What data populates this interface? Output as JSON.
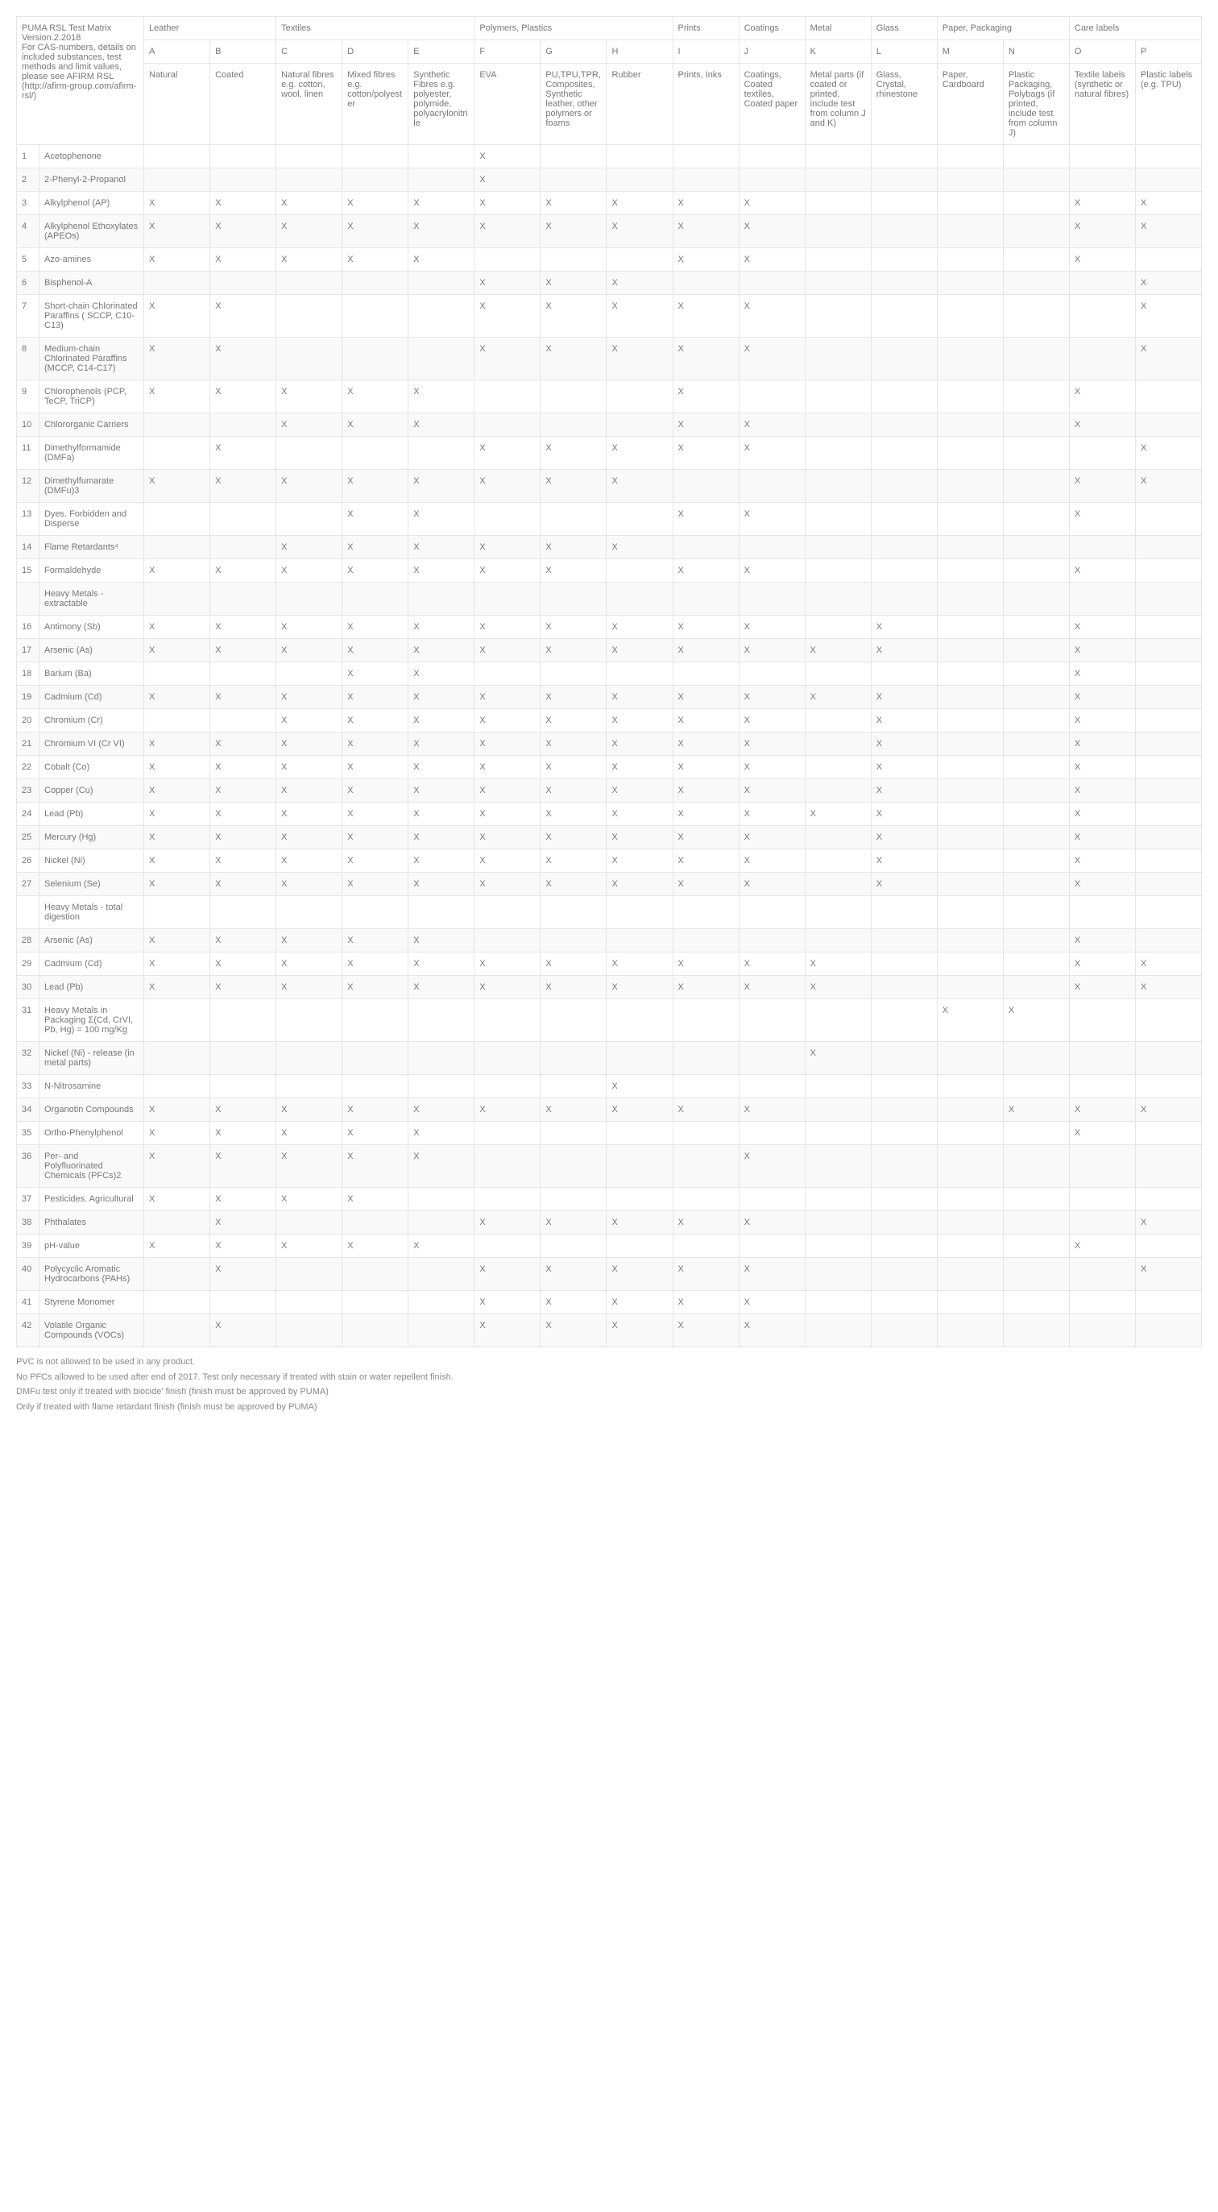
{
  "header_text": "PUMA RSL Test Matrix Version.2.2018\nFor CAS-numbers, details on included substances, test methods and limit values,\nplease see AFIRM RSL (http://afirm-group.com/afirm-rsl/)",
  "groups": [
    {
      "label": "Leather",
      "span": 2
    },
    {
      "label": "Textiles",
      "span": 3
    },
    {
      "label": "Polymers, Plastics",
      "span": 3
    },
    {
      "label": "Prints",
      "span": 1
    },
    {
      "label": "Coatings",
      "span": 1
    },
    {
      "label": "Metal",
      "span": 1
    },
    {
      "label": "Glass",
      "span": 1
    },
    {
      "label": "Paper, Packaging",
      "span": 2
    },
    {
      "label": "Care labels",
      "span": 2
    }
  ],
  "letters": [
    "A",
    "B",
    "C",
    "D",
    "E",
    "F",
    "G",
    "H",
    "I",
    "J",
    "K",
    "L",
    "M",
    "N",
    "O",
    "P"
  ],
  "col_desc": [
    "Natural",
    "Coated",
    "Natural fibres e.g. cotton, wool, linen",
    "Mixed fibres e.g. cotton/polyester",
    "Synthetic Fibres e.g. polyester, polymide, polyacrylonitrile",
    "EVA",
    "PU,TPU,TPR, Composites, Synthetic leather, other polymers or foams",
    "Rubber",
    "Prints, Inks",
    "Coatings, Coated textiles, Coated paper",
    "Metal parts (if coated or printed, include test from column J and K)",
    "Glass, Crystal, rhinestone",
    "Paper, Cardboard",
    "Plastic Packaging, Polybags (if printed, include test from column J)",
    "Textile labels (synthetic or natural fibres)",
    "Plastic labels (e.g. TPU)"
  ],
  "rows": [
    {
      "num": "1",
      "name": "Acetophenone",
      "marks": {
        "F": "X"
      }
    },
    {
      "num": "2",
      "name": "2-Phenyl-2-Propanol",
      "marks": {
        "F": "X"
      }
    },
    {
      "num": "3",
      "name": "Alkylphenol (AP)",
      "marks": {
        "A": "X",
        "B": "X",
        "C": "X",
        "D": "X",
        "E": "X",
        "F": "X",
        "G": "X",
        "H": "X",
        "I": "X",
        "J": "X",
        "O": "X",
        "P": "X"
      }
    },
    {
      "num": "4",
      "name": "Alkylphenol Ethoxylates (APEOs)",
      "marks": {
        "A": "X",
        "B": "X",
        "C": "X",
        "D": "X",
        "E": "X",
        "F": "X",
        "G": "X",
        "H": "X",
        "I": "X",
        "J": "X",
        "O": "X",
        "P": "X"
      }
    },
    {
      "num": "5",
      "name": "Azo-amines",
      "marks": {
        "A": "X",
        "B": "X",
        "C": "X",
        "D": "X",
        "E": "X",
        "I": "X",
        "J": "X",
        "O": "X"
      }
    },
    {
      "num": "6",
      "name": "Bisphenol-A",
      "marks": {
        "F": "X",
        "G": "X",
        "H": "X",
        "P": "X"
      }
    },
    {
      "num": "7",
      "name": "Short-chain Chlorinated Paraffins ( SCCP, C10-C13)",
      "marks": {
        "A": "X",
        "B": "X",
        "F": "X",
        "G": "X",
        "H": "X",
        "I": "X",
        "J": "X",
        "P": "X"
      }
    },
    {
      "num": "8",
      "name": "Medium-chain Chlorinated Paraffins (MCCP, C14-C17)",
      "marks": {
        "A": "X",
        "B": "X",
        "F": "X",
        "G": "X",
        "H": "X",
        "I": "X",
        "J": "X",
        "P": "X"
      }
    },
    {
      "num": "9",
      "name": "Chlorophenols (PCP, TeCP, TriCP)",
      "marks": {
        "A": "X",
        "B": "X",
        "C": "X",
        "D": "X",
        "E": "X",
        "I": "X",
        "O": "X"
      }
    },
    {
      "num": "10",
      "name": "Chlororganic Carriers",
      "marks": {
        "C": "X",
        "D": "X",
        "E": "X",
        "I": "X",
        "J": "X",
        "O": "X"
      }
    },
    {
      "num": "11",
      "name": "Dimethylformamide (DMFa)",
      "marks": {
        "B": "X",
        "F": "X",
        "G": "X",
        "H": "X",
        "I": "X",
        "J": "X",
        "P": "X"
      }
    },
    {
      "num": "12",
      "name": "Dimethylfumarate (DMFu)3",
      "marks": {
        "A": "X",
        "B": "X",
        "C": "X",
        "D": "X",
        "E": "X",
        "F": "X",
        "G": "X",
        "H": "X",
        "O": "X",
        "P": "X"
      }
    },
    {
      "num": "13",
      "name": "Dyes. Forbidden and Disperse",
      "marks": {
        "D": "X",
        "E": "X",
        "I": "X",
        "J": "X",
        "O": "X"
      }
    },
    {
      "num": "14",
      "name": "Flame Retardants⁴",
      "marks": {
        "C": "X",
        "D": "X",
        "E": "X",
        "F": "X",
        "G": "X",
        "H": "X"
      }
    },
    {
      "num": "15",
      "name": "Formaldehyde",
      "marks": {
        "A": "X",
        "B": "X",
        "C": "X",
        "D": "X",
        "E": "X",
        "F": "X",
        "G": "X",
        "I": "X",
        "J": "X",
        "O": "X"
      }
    },
    {
      "num": "",
      "name": "Heavy Metals - extractable",
      "marks": {},
      "section": true
    },
    {
      "num": "16",
      "name": "Antimony (Sb)",
      "marks": {
        "A": "X",
        "B": "X",
        "C": "X",
        "D": "X",
        "E": "X",
        "F": "X",
        "G": "X",
        "H": "X",
        "I": "X",
        "J": "X",
        "L": "X",
        "O": "X"
      }
    },
    {
      "num": "17",
      "name": "Arsenic (As)",
      "marks": {
        "A": "X",
        "B": "X",
        "C": "X",
        "D": "X",
        "E": "X",
        "F": "X",
        "G": "X",
        "H": "X",
        "I": "X",
        "J": "X",
        "K": "X",
        "L": "X",
        "O": "X"
      }
    },
    {
      "num": "18",
      "name": "Barium (Ba)",
      "marks": {
        "D": "X",
        "E": "X",
        "O": "X"
      }
    },
    {
      "num": "19",
      "name": "Cadmium (Cd)",
      "marks": {
        "A": "X",
        "B": "X",
        "C": "X",
        "D": "X",
        "E": "X",
        "F": "X",
        "G": "X",
        "H": "X",
        "I": "X",
        "J": "X",
        "K": "X",
        "L": "X",
        "O": "X"
      }
    },
    {
      "num": "20",
      "name": "Chromium (Cr)",
      "marks": {
        "C": "X",
        "D": "X",
        "E": "X",
        "F": "X",
        "G": "X",
        "H": "X",
        "I": "X",
        "J": "X",
        "L": "X",
        "O": "X"
      }
    },
    {
      "num": "21",
      "name": "Chromium VI (Cr VI)",
      "marks": {
        "A": "X",
        "B": "X",
        "C": "X",
        "D": "X",
        "E": "X",
        "F": "X",
        "G": "X",
        "H": "X",
        "I": "X",
        "J": "X",
        "L": "X",
        "O": "X"
      }
    },
    {
      "num": "22",
      "name": "Cobalt (Co)",
      "marks": {
        "A": "X",
        "B": "X",
        "C": "X",
        "D": "X",
        "E": "X",
        "F": "X",
        "G": "X",
        "H": "X",
        "I": "X",
        "J": "X",
        "L": "X",
        "O": "X"
      }
    },
    {
      "num": "23",
      "name": "Copper (Cu)",
      "marks": {
        "A": "X",
        "B": "X",
        "C": "X",
        "D": "X",
        "E": "X",
        "F": "X",
        "G": "X",
        "H": "X",
        "I": "X",
        "J": "X",
        "L": "X",
        "O": "X"
      }
    },
    {
      "num": "24",
      "name": "Lead (Pb)",
      "marks": {
        "A": "X",
        "B": "X",
        "C": "X",
        "D": "X",
        "E": "X",
        "F": "X",
        "G": "X",
        "H": "X",
        "I": "X",
        "J": "X",
        "K": "X",
        "L": "X",
        "O": "X"
      }
    },
    {
      "num": "25",
      "name": "Mercury (Hg)",
      "marks": {
        "A": "X",
        "B": "X",
        "C": "X",
        "D": "X",
        "E": "X",
        "F": "X",
        "G": "X",
        "H": "X",
        "I": "X",
        "J": "X",
        "L": "X",
        "O": "X"
      }
    },
    {
      "num": "26",
      "name": "Nickel (Ni)",
      "marks": {
        "A": "X",
        "B": "X",
        "C": "X",
        "D": "X",
        "E": "X",
        "F": "X",
        "G": "X",
        "H": "X",
        "I": "X",
        "J": "X",
        "L": "X",
        "O": "X"
      }
    },
    {
      "num": "27",
      "name": "Selenium (Se)",
      "marks": {
        "A": "X",
        "B": "X",
        "C": "X",
        "D": "X",
        "E": "X",
        "F": "X",
        "G": "X",
        "H": "X",
        "I": "X",
        "J": "X",
        "L": "X",
        "O": "X"
      }
    },
    {
      "num": "",
      "name": "Heavy Metals - total digestion",
      "marks": {},
      "section": true
    },
    {
      "num": "28",
      "name": "Arsenic (As)",
      "marks": {
        "A": "X",
        "B": "X",
        "C": "X",
        "D": "X",
        "E": "X",
        "O": "X"
      }
    },
    {
      "num": "29",
      "name": "Cadmium (Cd)",
      "marks": {
        "A": "X",
        "B": "X",
        "C": "X",
        "D": "X",
        "E": "X",
        "F": "X",
        "G": "X",
        "H": "X",
        "I": "X",
        "J": "X",
        "K": "X",
        "O": "X",
        "P": "X"
      }
    },
    {
      "num": "30",
      "name": "Lead (Pb)",
      "marks": {
        "A": "X",
        "B": "X",
        "C": "X",
        "D": "X",
        "E": "X",
        "F": "X",
        "G": "X",
        "H": "X",
        "I": "X",
        "J": "X",
        "K": "X",
        "O": "X",
        "P": "X"
      }
    },
    {
      "num": "31",
      "name": "Heavy Metals in Packaging Σ(Cd, CrVI, Pb, Hg) = 100 mg/Kg",
      "marks": {
        "M": "X",
        "N": "X"
      }
    },
    {
      "num": "32",
      "name": "Nickel (Ni) - release (in metal parts)",
      "marks": {
        "K": "X"
      }
    },
    {
      "num": "33",
      "name": "N-Nitrosamine",
      "marks": {
        "H": "X"
      }
    },
    {
      "num": "34",
      "name": "Organotin Compounds",
      "marks": {
        "A": "X",
        "B": "X",
        "C": "X",
        "D": "X",
        "E": "X",
        "F": "X",
        "G": "X",
        "H": "X",
        "I": "X",
        "J": "X",
        "N": "X",
        "O": "X",
        "P": "X"
      }
    },
    {
      "num": "35",
      "name": "Ortho-Phenylphenol",
      "marks": {
        "A": "X",
        "B": "X",
        "C": "X",
        "D": "X",
        "E": "X",
        "O": "X"
      }
    },
    {
      "num": "36",
      "name": "Per- and Polyfluorinated Chemicals (PFCs)2",
      "marks": {
        "A": "X",
        "B": "X",
        "C": "X",
        "D": "X",
        "E": "X",
        "J": "X"
      }
    },
    {
      "num": "37",
      "name": "Pesticides. Agricultural",
      "marks": {
        "A": "X",
        "B": "X",
        "C": "X",
        "D": "X"
      }
    },
    {
      "num": "38",
      "name": "Phthalates",
      "marks": {
        "B": "X",
        "F": "X",
        "G": "X",
        "H": "X",
        "I": "X",
        "J": "X",
        "P": "X"
      }
    },
    {
      "num": "39",
      "name": "pH-value",
      "marks": {
        "A": "X",
        "B": "X",
        "C": "X",
        "D": "X",
        "E": "X",
        "O": "X"
      }
    },
    {
      "num": "40",
      "name": "Polycyclic Aromatic Hydrocarbons (PAHs)",
      "marks": {
        "B": "X",
        "F": "X",
        "G": "X",
        "H": "X",
        "I": "X",
        "J": "X",
        "P": "X"
      }
    },
    {
      "num": "41",
      "name": "Styrene Monomer",
      "marks": {
        "F": "X",
        "G": "X",
        "H": "X",
        "I": "X",
        "J": "X"
      }
    },
    {
      "num": "42",
      "name": "Volatile Organic Compounds (VOCs)",
      "marks": {
        "B": "X",
        "F": "X",
        "G": "X",
        "H": "X",
        "I": "X",
        "J": "X"
      }
    }
  ],
  "footnotes": [
    "PVC is not allowed to be used in any product.",
    "No PFCs allowed to be used after end of 2017. Test only necessary if treated with stain or water repellent finish.",
    "DMFu test only if treated with biocide' finish (finish must be approved by PUMA)",
    "Only if treated with flame retardant finish (finish must be approved by PUMA)"
  ]
}
